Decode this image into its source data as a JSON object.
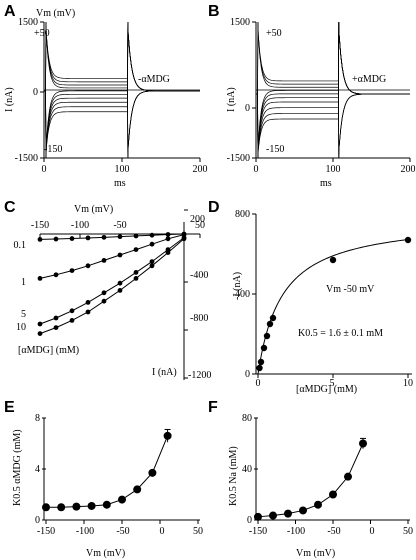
{
  "chart_data": [
    {
      "panel": "A",
      "type": "line",
      "title": "-αMDG",
      "xlabel": "ms",
      "ylabel": "I (nA)",
      "voltage_label": "Vm (mV)",
      "voltage_annotations": [
        "+50",
        "-150"
      ],
      "xlim": [
        0,
        200
      ],
      "ylim": [
        -1500,
        1500
      ],
      "xticks": [
        "0",
        "100",
        "200"
      ],
      "yticks": [
        "1500",
        "0",
        "-1500"
      ],
      "pulse_on_ms": 2,
      "pulse_off_ms": 107,
      "steady_currents": [
        255,
        180,
        110,
        45,
        -20,
        -95,
        -180,
        -270,
        -370,
        -480
      ],
      "tail_current": -20
    },
    {
      "panel": "B",
      "type": "line",
      "title": "+αMDG",
      "xlabel": "ms",
      "ylabel": "I (nA)",
      "voltage_annotations": [
        "+50",
        "-150"
      ],
      "xlim": [
        0,
        200
      ],
      "ylim": [
        -1500,
        1500
      ],
      "xticks": [
        "0",
        "100",
        "200"
      ],
      "yticks": [
        "1500",
        "0",
        "-1500"
      ],
      "pulse_on_ms": 2,
      "pulse_off_ms": 107,
      "steady_currents": [
        200,
        130,
        60,
        -10,
        -85,
        -170,
        -265,
        -390,
        -520,
        -640
      ],
      "tail_current": -90
    },
    {
      "panel": "C",
      "type": "line",
      "xlabel": "Vm (mV)",
      "ylabel": "I (nA)",
      "legend_title": "[αMDG] (mM)",
      "xticks": [
        "-150",
        "-100",
        "-50",
        "50"
      ],
      "yticks": [
        "200",
        "-400",
        "-800",
        "-1200"
      ],
      "xlim": [
        -150,
        50
      ],
      "ylim": [
        -1200,
        200
      ],
      "series": [
        {
          "name": "0.1",
          "x": [
            -150,
            -130,
            -110,
            -90,
            -70,
            -50,
            -30,
            -10,
            10,
            30
          ],
          "y": [
            -45,
            -42,
            -38,
            -33,
            -28,
            -22,
            -16,
            -10,
            -4,
            0
          ]
        },
        {
          "name": "1",
          "x": [
            -150,
            -130,
            -110,
            -90,
            -70,
            -50,
            -30,
            -10,
            10,
            30
          ],
          "y": [
            -370,
            -340,
            -305,
            -265,
            -220,
            -175,
            -130,
            -85,
            -40,
            -5
          ]
        },
        {
          "name": "5",
          "x": [
            -150,
            -130,
            -110,
            -90,
            -70,
            -50,
            -30,
            -10,
            10,
            30
          ],
          "y": [
            -750,
            -700,
            -640,
            -570,
            -490,
            -410,
            -320,
            -230,
            -130,
            -30
          ]
        },
        {
          "name": "10",
          "x": [
            -150,
            -130,
            -110,
            -90,
            -70,
            -50,
            -30,
            -10,
            10,
            30
          ],
          "y": [
            -830,
            -780,
            -720,
            -650,
            -560,
            -470,
            -370,
            -265,
            -155,
            -40
          ]
        }
      ]
    },
    {
      "panel": "D",
      "type": "scatter",
      "xlabel": "[αMDG] (mM)",
      "ylabel": "-I (nA)",
      "annotation_vm": "Vm -50 mV",
      "annotation_k": "K0.5 = 1.6 ± 0.1 mM",
      "xlim": [
        0,
        10
      ],
      "ylim": [
        0,
        800
      ],
      "xticks": [
        "0",
        "5",
        "10"
      ],
      "yticks": [
        "0",
        "400",
        "800"
      ],
      "x": [
        0.1,
        0.2,
        0.4,
        0.6,
        0.8,
        1.0,
        5.0,
        10.0
      ],
      "y": [
        30,
        60,
        130,
        190,
        250,
        280,
        570,
        670
      ],
      "fit": {
        "imax": 780,
        "k": 1.6
      }
    },
    {
      "panel": "E",
      "type": "scatter",
      "xlabel": "Vm (mV)",
      "ylabel": "K0.5 αMDG (mM)",
      "xlim": [
        -150,
        50
      ],
      "ylim": [
        0,
        8
      ],
      "xticks": [
        "-150",
        "-100",
        "-50",
        "0",
        "50"
      ],
      "yticks": [
        "0",
        "4",
        "8"
      ],
      "x": [
        -150,
        -130,
        -110,
        -90,
        -70,
        -50,
        -30,
        -10,
        10
      ],
      "y": [
        1.0,
        1.0,
        1.05,
        1.1,
        1.2,
        1.6,
        2.4,
        3.7,
        6.6
      ],
      "err": [
        0,
        0,
        0,
        0,
        0,
        0,
        0,
        0,
        0.5
      ]
    },
    {
      "panel": "F",
      "type": "scatter",
      "xlabel": "Vm (mV)",
      "ylabel": "K0.5 Na (mM)",
      "xlim": [
        -150,
        50
      ],
      "ylim": [
        0,
        80
      ],
      "xticks": [
        "-150",
        "-100",
        "-50",
        "0",
        "50"
      ],
      "yticks": [
        "0",
        "40",
        "80"
      ],
      "x": [
        -150,
        -130,
        -110,
        -90,
        -70,
        -50,
        -30,
        -10
      ],
      "y": [
        2.5,
        3.5,
        5,
        7.5,
        12,
        20,
        34,
        60
      ],
      "err": [
        0,
        0,
        0,
        0,
        0,
        0,
        0,
        4
      ]
    }
  ]
}
